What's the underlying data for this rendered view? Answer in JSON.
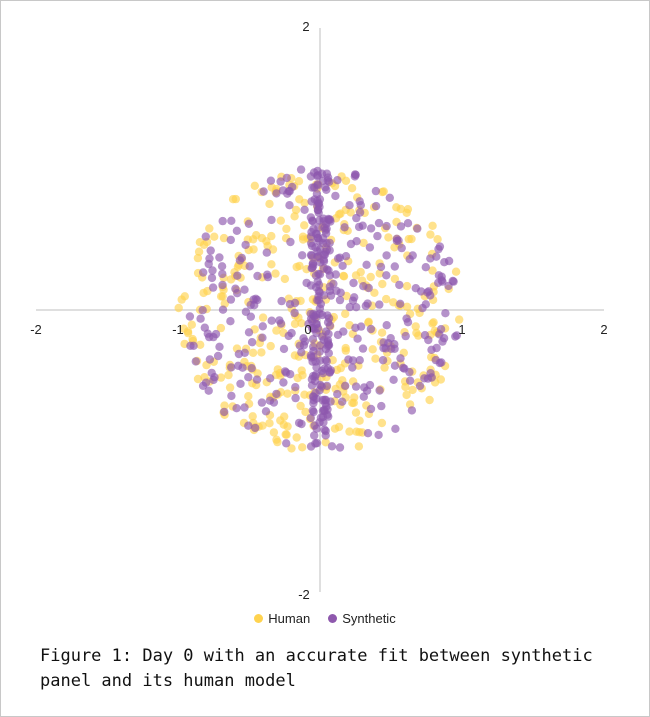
{
  "chart_data": {
    "type": "scatter",
    "xlim": [
      -2,
      2
    ],
    "ylim": [
      -2,
      2
    ],
    "x_ticks": [
      "-2",
      "-1",
      "0",
      "1",
      "2"
    ],
    "y_ticks": [
      "2",
      "-2"
    ],
    "grid": false,
    "legend_position": "bottom",
    "series": [
      {
        "name": "Human",
        "color": "#FFD34F",
        "distribution": "uniform-disk",
        "radius": 1.0,
        "center": [
          0,
          0
        ]
      },
      {
        "name": "Synthetic",
        "color": "#8E58AD",
        "distribution": "uniform-disk with dense band near x=0",
        "radius": 1.0,
        "center": [
          0,
          0
        ]
      }
    ]
  },
  "caption": "Figure 1: Day 0 with an accurate fit between synthetic panel and its human model"
}
